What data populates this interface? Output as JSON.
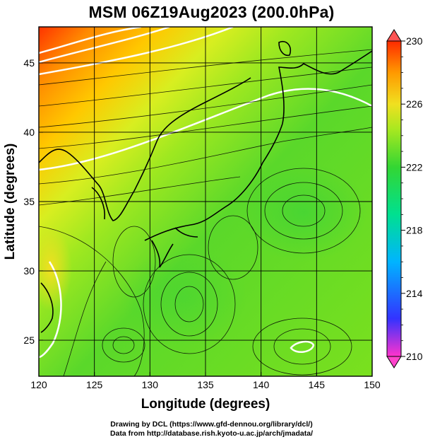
{
  "title": "MSM 06Z19Aug2023 (200.0hPa)",
  "x_axis": {
    "label": "Longitude (degrees)",
    "range": [
      120,
      150
    ],
    "ticks": [
      "120",
      "125",
      "130",
      "135",
      "140",
      "145",
      "150"
    ]
  },
  "y_axis": {
    "label": "Latitude  (degrees)",
    "range": [
      22.4,
      47.6
    ],
    "ticks": [
      "25",
      "30",
      "35",
      "40",
      "45"
    ]
  },
  "colorbar": {
    "range": [
      210,
      230
    ],
    "ticks": [
      "210",
      "214",
      "218",
      "222",
      "226",
      "230"
    ],
    "colors": [
      "#ff33cc",
      "#3333ff",
      "#00b4ff",
      "#00e090",
      "#33d633",
      "#a8e820",
      "#f0e020",
      "#ff9900",
      "#ff2a00",
      "#e02020"
    ]
  },
  "credits": {
    "line1": "Drawing by DCL (https://www.gfd-dennou.org/library/dcl/)",
    "line2": "Data from http://database.rish.kyoto-u.ac.jp/arch/jmadata/"
  }
}
